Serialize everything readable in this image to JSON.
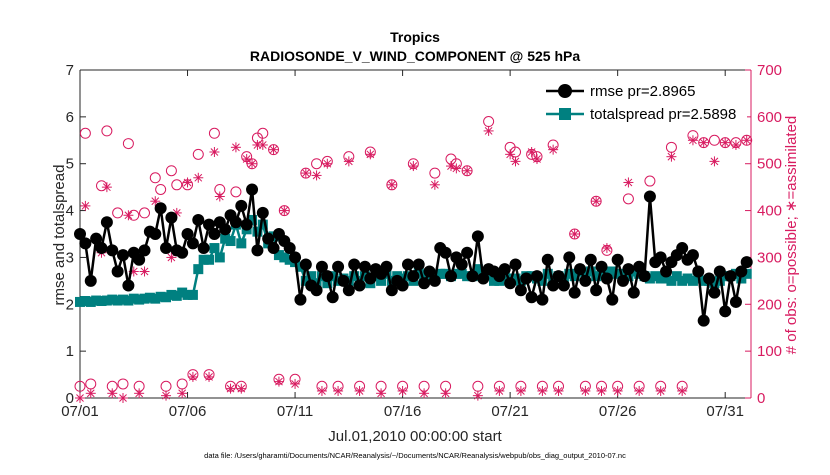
{
  "chart_data": {
    "type": "line",
    "title": "Tropics",
    "subtitle": "RADIOSONDE_V_WIND_COMPONENT @ 525 hPa",
    "xlabel": "Jul.01,2010 00:00:00 start",
    "ylabel": "rmse and totalspread",
    "ylabel_right": "# of obs: o=possible; ∗=assimilated",
    "footnote": "data file: /Users/gharamti/Documents/NCAR/Reanalysis/~/Documents/NCAR/Reanalysis/webpub/obs_diag_output_2010-07.nc",
    "xlim": [
      1,
      32.2
    ],
    "ylim": [
      0,
      7
    ],
    "ylim_right": [
      0,
      700
    ],
    "x_ticks": [
      1,
      6,
      11,
      16,
      21,
      26,
      31
    ],
    "x_tick_labels": [
      "07/01",
      "07/06",
      "07/11",
      "07/16",
      "07/21",
      "07/26",
      "07/31"
    ],
    "y_ticks": [
      0,
      1,
      2,
      3,
      4,
      5,
      6,
      7
    ],
    "y_tick_labels": [
      "0",
      "1",
      "2",
      "3",
      "4",
      "5",
      "6",
      "7"
    ],
    "y_ticks_right": [
      0,
      100,
      200,
      300,
      400,
      500,
      600,
      700
    ],
    "y_tick_labels_right": [
      "0",
      "100",
      "200",
      "300",
      "400",
      "500",
      "600",
      "700"
    ],
    "legend_position": "top-right",
    "colors": {
      "rmse": "#000000",
      "totalspread": "#008080",
      "obs": "#d81b60",
      "axis": "#262626"
    },
    "series": [
      {
        "name": "rmse pr=2.8965",
        "marker": "circle",
        "x": [
          1.0,
          1.25,
          1.5,
          1.75,
          2.0,
          2.25,
          2.5,
          2.75,
          3.0,
          3.25,
          3.5,
          3.75,
          4.0,
          4.25,
          4.5,
          4.75,
          5.0,
          5.25,
          5.5,
          5.75,
          6.0,
          6.25,
          6.5,
          6.75,
          7.0,
          7.25,
          7.5,
          7.75,
          8.0,
          8.25,
          8.5,
          8.75,
          9.0,
          9.25,
          9.5,
          9.75,
          10.0,
          10.25,
          10.5,
          10.75,
          11.0,
          11.25,
          11.5,
          11.75,
          12.0,
          12.25,
          12.5,
          12.75,
          13.0,
          13.25,
          13.5,
          13.75,
          14.0,
          14.25,
          14.5,
          14.75,
          15.0,
          15.25,
          15.5,
          15.75,
          16.0,
          16.25,
          16.5,
          16.75,
          17.0,
          17.25,
          17.5,
          17.75,
          18.0,
          18.25,
          18.5,
          18.75,
          19.0,
          19.25,
          19.5,
          19.75,
          20.0,
          20.25,
          20.5,
          20.75,
          21.0,
          21.25,
          21.5,
          21.75,
          22.0,
          22.25,
          22.5,
          22.75,
          23.0,
          23.25,
          23.5,
          23.75,
          24.0,
          24.25,
          24.5,
          24.75,
          25.0,
          25.25,
          25.5,
          25.75,
          26.0,
          26.25,
          26.5,
          26.75,
          27.0,
          27.25,
          27.5,
          27.75,
          28.0,
          28.25,
          28.5,
          28.75,
          29.0,
          29.25,
          29.5,
          29.75,
          30.0,
          30.25,
          30.5,
          30.75,
          31.0,
          31.25,
          31.5,
          31.75,
          32.0
        ],
        "values": [
          3.5,
          3.3,
          2.5,
          3.4,
          3.2,
          3.75,
          3.15,
          2.7,
          3.05,
          2.4,
          3.1,
          2.95,
          3.15,
          3.55,
          3.5,
          4.05,
          3.2,
          3.85,
          3.15,
          3.1,
          3.5,
          3.3,
          3.8,
          3.2,
          3.7,
          3.5,
          3.75,
          3.6,
          3.9,
          3.75,
          4.1,
          3.7,
          4.45,
          3.15,
          3.95,
          3.4,
          3.2,
          3.5,
          3.35,
          3.2,
          3.0,
          2.1,
          2.85,
          2.4,
          2.3,
          2.8,
          2.6,
          2.15,
          2.8,
          2.5,
          2.3,
          2.85,
          2.4,
          2.8,
          2.55,
          2.75,
          2.65,
          2.8,
          2.3,
          2.5,
          2.4,
          2.85,
          2.6,
          2.85,
          2.45,
          2.7,
          2.5,
          3.2,
          3.1,
          2.6,
          3.0,
          2.85,
          3.1,
          2.6,
          3.45,
          2.55,
          2.75,
          2.7,
          2.6,
          2.75,
          2.45,
          2.85,
          2.3,
          2.55,
          2.15,
          2.6,
          2.1,
          2.95,
          2.4,
          2.6,
          2.4,
          3.0,
          2.25,
          2.75,
          2.5,
          2.95,
          2.3,
          2.8,
          2.55,
          2.1,
          2.95,
          2.5,
          2.75,
          2.25,
          2.8,
          2.6,
          4.3,
          2.9,
          3.0,
          2.7,
          2.9,
          3.05,
          3.2,
          2.95,
          3.05,
          2.7,
          1.65,
          2.55,
          2.25,
          2.7,
          1.85,
          2.6,
          2.05,
          2.7,
          2.9
        ]
      },
      {
        "name": "totalspread pr=2.5898",
        "marker": "square",
        "x": [
          1.0,
          1.25,
          1.5,
          1.75,
          2.0,
          2.25,
          2.5,
          2.75,
          3.0,
          3.25,
          3.5,
          3.75,
          4.0,
          4.25,
          4.5,
          4.75,
          5.0,
          5.25,
          5.5,
          5.75,
          6.0,
          6.25,
          6.5,
          6.75,
          7.0,
          7.25,
          7.5,
          7.75,
          8.0,
          8.25,
          8.5,
          8.75,
          9.0,
          9.25,
          9.5,
          9.75,
          10.0,
          10.25,
          10.5,
          10.75,
          11.0,
          11.25,
          11.5,
          11.75,
          12.0,
          12.25,
          12.5,
          12.75,
          13.0,
          13.25,
          13.5,
          13.75,
          14.0,
          14.25,
          14.5,
          14.75,
          15.0,
          15.25,
          15.5,
          15.75,
          16.0,
          16.25,
          16.5,
          16.75,
          17.0,
          17.25,
          17.5,
          17.75,
          18.0,
          18.25,
          18.5,
          18.75,
          19.0,
          19.25,
          19.5,
          19.75,
          20.0,
          20.25,
          20.5,
          20.75,
          21.0,
          21.25,
          21.5,
          21.75,
          22.0,
          22.25,
          22.5,
          22.75,
          23.0,
          23.25,
          23.5,
          23.75,
          24.0,
          24.25,
          24.5,
          24.75,
          25.0,
          25.25,
          25.5,
          25.75,
          26.0,
          26.25,
          26.5,
          26.75,
          27.0,
          27.25,
          27.5,
          27.75,
          28.0,
          28.25,
          28.5,
          28.75,
          29.0,
          29.25,
          29.5,
          29.75,
          30.0,
          30.25,
          30.5,
          30.75,
          31.0,
          31.25,
          31.5,
          31.75,
          32.0
        ],
        "values": [
          2.05,
          2.07,
          2.05,
          2.08,
          2.07,
          2.08,
          2.1,
          2.08,
          2.1,
          2.08,
          2.12,
          2.1,
          2.12,
          2.14,
          2.12,
          2.16,
          2.15,
          2.2,
          2.18,
          2.25,
          2.2,
          2.2,
          2.75,
          2.95,
          2.95,
          3.2,
          3.0,
          3.4,
          3.35,
          3.7,
          3.3,
          3.6,
          3.8,
          3.55,
          3.7,
          3.3,
          3.45,
          3.05,
          3.0,
          2.95,
          2.9,
          2.8,
          2.5,
          2.6,
          2.45,
          2.6,
          2.45,
          2.6,
          2.5,
          2.55,
          2.5,
          2.6,
          2.5,
          2.6,
          2.45,
          2.6,
          2.5,
          2.65,
          2.5,
          2.6,
          2.55,
          2.6,
          2.5,
          2.7,
          2.6,
          2.6,
          2.55,
          2.65,
          2.65,
          2.6,
          2.65,
          2.65,
          2.6,
          2.6,
          2.75,
          2.6,
          2.65,
          2.5,
          2.5,
          2.6,
          2.55,
          2.55,
          2.5,
          2.6,
          2.6,
          2.55,
          2.5,
          2.65,
          2.5,
          2.6,
          2.55,
          2.65,
          2.6,
          2.7,
          2.65,
          2.7,
          2.6,
          2.65,
          2.7,
          2.7,
          2.65,
          2.6,
          2.6,
          2.7,
          2.65,
          2.6,
          2.55,
          2.6,
          2.55,
          2.55,
          2.5,
          2.6,
          2.5,
          2.55,
          2.5,
          2.55,
          2.5,
          2.5,
          2.45,
          2.5,
          2.6,
          2.6,
          2.65,
          2.55,
          2.65
        ]
      },
      {
        "name": "possible obs",
        "axis": "right",
        "marker": "open-circle",
        "x": [
          1.0,
          1.25,
          1.5,
          2.0,
          2.25,
          2.5,
          2.75,
          3.0,
          3.25,
          3.5,
          3.75,
          4.0,
          4.5,
          4.75,
          5.0,
          5.25,
          5.5,
          5.75,
          6.0,
          6.25,
          6.5,
          7.0,
          7.25,
          7.5,
          8.0,
          8.25,
          8.5,
          8.75,
          9.0,
          9.25,
          9.5,
          10.0,
          10.25,
          10.5,
          11.0,
          11.5,
          12.0,
          12.25,
          12.5,
          13.0,
          13.5,
          14.0,
          14.5,
          15.0,
          15.5,
          16.0,
          16.5,
          17.0,
          17.5,
          18.0,
          18.25,
          18.5,
          19.0,
          19.5,
          20.0,
          20.5,
          21.0,
          21.25,
          21.5,
          22.0,
          22.25,
          22.5,
          23.0,
          23.25,
          24.0,
          24.5,
          25.0,
          25.25,
          25.5,
          26.0,
          26.5,
          27.0,
          27.5,
          28.0,
          28.5,
          29.0,
          29.5,
          30.0,
          30.5,
          31.0,
          31.5,
          32.0
        ],
        "values": [
          25,
          565,
          30,
          453,
          570,
          25,
          395,
          30,
          543,
          390,
          25,
          395,
          470,
          445,
          25,
          485,
          455,
          30,
          455,
          50,
          520,
          50,
          565,
          445,
          25,
          440,
          25,
          515,
          500,
          555,
          565,
          530,
          40,
          400,
          40,
          480,
          500,
          25,
          505,
          25,
          515,
          25,
          525,
          25,
          455,
          25,
          500,
          25,
          480,
          25,
          510,
          500,
          485,
          25,
          590,
          25,
          535,
          525,
          25,
          520,
          515,
          25,
          540,
          25,
          350,
          25,
          420,
          25,
          315,
          25,
          425,
          25,
          463,
          25,
          535,
          25,
          560,
          545,
          550,
          545,
          545,
          550
        ]
      },
      {
        "name": "assimilated obs",
        "axis": "right",
        "marker": "asterisk",
        "x": [
          1.0,
          1.25,
          1.5,
          2.0,
          2.25,
          2.5,
          2.75,
          3.0,
          3.25,
          3.5,
          3.75,
          4.0,
          4.5,
          4.75,
          5.0,
          5.25,
          5.5,
          5.75,
          6.0,
          6.25,
          6.5,
          7.0,
          7.25,
          7.5,
          8.0,
          8.25,
          8.5,
          8.75,
          9.0,
          9.25,
          9.5,
          10.0,
          10.25,
          10.5,
          11.0,
          11.5,
          12.0,
          12.25,
          12.5,
          13.0,
          13.5,
          14.0,
          14.5,
          15.0,
          15.5,
          16.0,
          16.5,
          17.0,
          17.5,
          18.0,
          18.25,
          18.5,
          19.0,
          19.5,
          20.0,
          20.5,
          21.0,
          21.25,
          21.5,
          22.0,
          22.25,
          22.5,
          23.0,
          23.25,
          24.0,
          24.5,
          25.0,
          25.25,
          25.5,
          26.0,
          26.5,
          27.0,
          27.5,
          28.0,
          28.5,
          29.0,
          29.5,
          30.0,
          30.5,
          31.0,
          31.5,
          32.0
        ],
        "values": [
          0,
          410,
          10,
          310,
          450,
          10,
          270,
          0,
          390,
          270,
          10,
          270,
          420,
          405,
          5,
          300,
          395,
          10,
          460,
          45,
          470,
          45,
          525,
          430,
          20,
          535,
          20,
          510,
          500,
          540,
          540,
          530,
          35,
          400,
          30,
          480,
          475,
          15,
          500,
          15,
          505,
          15,
          520,
          10,
          455,
          15,
          495,
          10,
          455,
          10,
          495,
          490,
          485,
          5,
          570,
          15,
          520,
          505,
          15,
          525,
          510,
          15,
          530,
          15,
          350,
          15,
          420,
          15,
          320,
          15,
          460,
          15,
          430,
          15,
          515,
          15,
          550,
          545,
          505,
          545,
          540,
          550
        ]
      }
    ]
  }
}
